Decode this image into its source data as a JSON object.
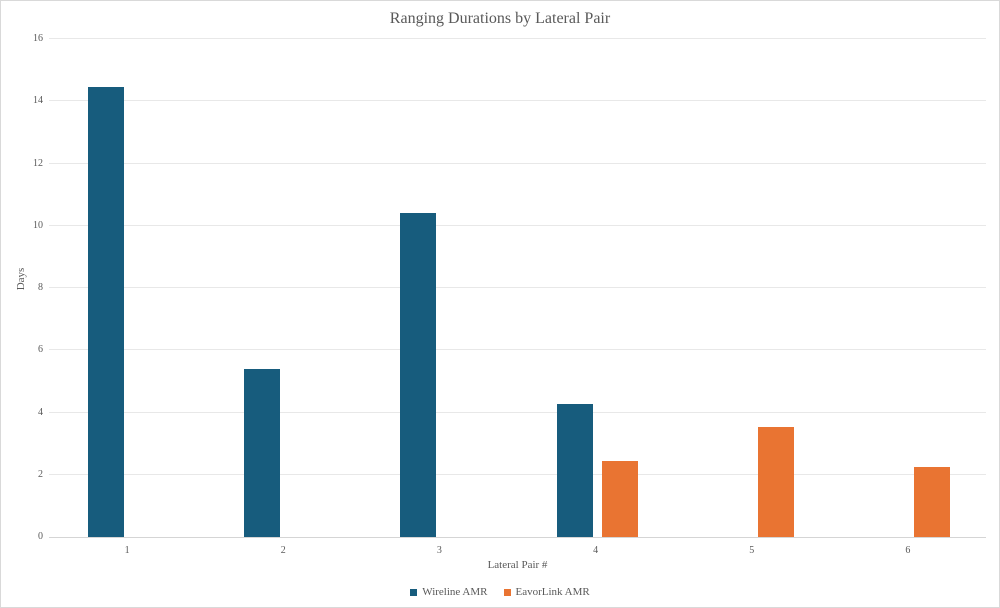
{
  "chart": {
    "title": "Ranging Durations by Lateral Pair",
    "x_axis_title": "Lateral Pair #",
    "y_axis_title": "Days"
  },
  "chart_data": {
    "type": "bar",
    "title": "Ranging Durations by Lateral Pair",
    "xlabel": "Lateral Pair #",
    "ylabel": "Days",
    "categories": [
      "1",
      "2",
      "3",
      "4",
      "5",
      "6"
    ],
    "series": [
      {
        "name": "Wireline AMR",
        "color": "#175c7d",
        "values": [
          14.45,
          5.4,
          10.4,
          4.27,
          0,
          0
        ]
      },
      {
        "name": "EavorLink AMR",
        "color": "#e97432",
        "values": [
          0,
          0,
          0,
          2.43,
          3.55,
          2.25
        ]
      }
    ],
    "ylim": [
      0,
      16
    ],
    "yticks": [
      0,
      2,
      4,
      6,
      8,
      10,
      12,
      14,
      16
    ],
    "grid": true,
    "legend_position": "bottom"
  },
  "colors": {
    "series_wireline": "#175c7d",
    "series_eavorlink": "#e97432",
    "text": "#595959",
    "gridline": "#e8e8e8",
    "axis_line": "#d5d5d5",
    "chart_border": "#d9d9d9",
    "background": "#ffffff"
  }
}
